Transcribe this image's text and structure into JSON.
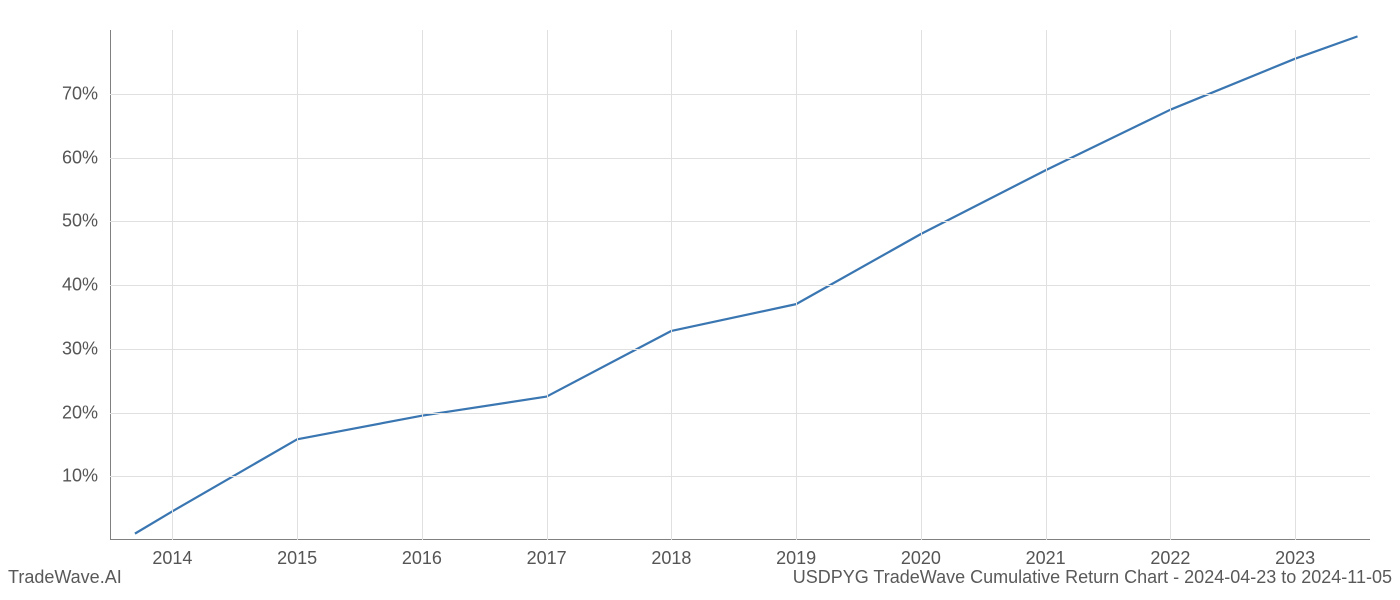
{
  "chart": {
    "type": "line",
    "background_color": "#ffffff",
    "grid_color": "#e0e0e0",
    "spine_color": "#808080",
    "line_color": "#3a76b1",
    "line_width": 2.2,
    "tick_label_color": "#555555",
    "tick_fontsize": 18,
    "x": {
      "ticks": [
        2014,
        2015,
        2016,
        2017,
        2018,
        2019,
        2020,
        2021,
        2022,
        2023
      ],
      "labels": [
        "2014",
        "2015",
        "2016",
        "2017",
        "2018",
        "2019",
        "2020",
        "2021",
        "2022",
        "2023"
      ],
      "lim": [
        2013.5,
        2023.6
      ]
    },
    "y": {
      "ticks": [
        10,
        20,
        30,
        40,
        50,
        60,
        70
      ],
      "labels": [
        "10%",
        "20%",
        "30%",
        "40%",
        "50%",
        "60%",
        "70%"
      ],
      "lim": [
        0,
        80
      ]
    },
    "series": {
      "x": [
        2013.7,
        2014,
        2015,
        2016,
        2017,
        2018,
        2019,
        2020,
        2021,
        2022,
        2023,
        2023.5
      ],
      "y": [
        1.0,
        4.5,
        15.8,
        19.5,
        22.5,
        32.8,
        37.0,
        48.0,
        58.0,
        67.5,
        75.5,
        79.0
      ]
    }
  },
  "footer": {
    "left": "TradeWave.AI",
    "right": "USDPYG TradeWave Cumulative Return Chart - 2024-04-23 to 2024-11-05"
  }
}
